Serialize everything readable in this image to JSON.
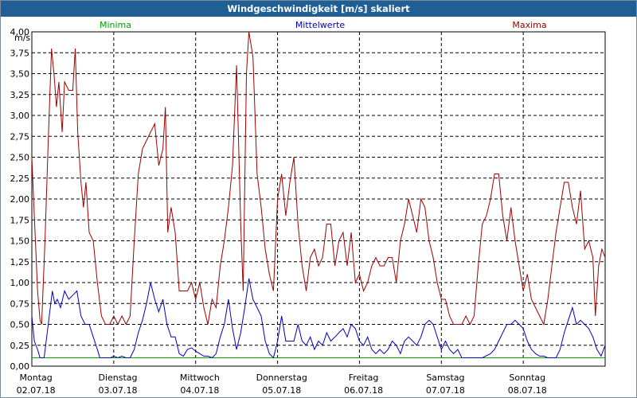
{
  "chart_data": {
    "type": "line",
    "title": "Windgeschwindigkeit [m/s] skaliert",
    "ylabel": "m/s",
    "ylim": [
      0,
      4
    ],
    "y_ticks": [
      "0,00",
      "0,25",
      "0,50",
      "0,75",
      "1,00",
      "1,25",
      "1,50",
      "1,75",
      "2,00",
      "2,25",
      "2,50",
      "2,75",
      "3,00",
      "3,25",
      "3,50",
      "3,75",
      "4,00"
    ],
    "grid": true,
    "days": [
      {
        "weekday": "Montag",
        "date": "02.07.18"
      },
      {
        "weekday": "Dienstag",
        "date": "03.07.18"
      },
      {
        "weekday": "Mittwoch",
        "date": "04.07.18"
      },
      {
        "weekday": "Donnerstag",
        "date": "05.07.18"
      },
      {
        "weekday": "Freitag",
        "date": "06.07.18"
      },
      {
        "weekday": "Samstag",
        "date": "07.07.18"
      },
      {
        "weekday": "Sonntag",
        "date": "08.07.18"
      }
    ],
    "x_range_days": [
      0,
      7
    ],
    "series": [
      {
        "name": "Minima",
        "color": "#00a000",
        "points": [
          [
            0,
            0.1
          ],
          [
            7,
            0.1
          ]
        ]
      },
      {
        "name": "Mittelwerte",
        "color": "#0000c0",
        "points": [
          [
            0,
            0.6
          ],
          [
            0.03,
            0.3
          ],
          [
            0.07,
            0.2
          ],
          [
            0.1,
            0.1
          ],
          [
            0.15,
            0.1
          ],
          [
            0.2,
            0.5
          ],
          [
            0.25,
            0.9
          ],
          [
            0.28,
            0.75
          ],
          [
            0.31,
            0.8
          ],
          [
            0.35,
            0.7
          ],
          [
            0.4,
            0.9
          ],
          [
            0.45,
            0.8
          ],
          [
            0.5,
            0.85
          ],
          [
            0.55,
            0.9
          ],
          [
            0.6,
            0.6
          ],
          [
            0.65,
            0.5
          ],
          [
            0.7,
            0.5
          ],
          [
            0.75,
            0.35
          ],
          [
            0.8,
            0.2
          ],
          [
            0.83,
            0.1
          ],
          [
            0.9,
            0.1
          ],
          [
            0.96,
            0.1
          ],
          [
            1.0,
            0.12
          ],
          [
            1.05,
            0.1
          ],
          [
            1.1,
            0.12
          ],
          [
            1.15,
            0.1
          ],
          [
            1.2,
            0.1
          ],
          [
            1.25,
            0.2
          ],
          [
            1.3,
            0.4
          ],
          [
            1.35,
            0.55
          ],
          [
            1.4,
            0.75
          ],
          [
            1.45,
            1.0
          ],
          [
            1.5,
            0.8
          ],
          [
            1.55,
            0.65
          ],
          [
            1.6,
            0.8
          ],
          [
            1.65,
            0.5
          ],
          [
            1.7,
            0.35
          ],
          [
            1.75,
            0.35
          ],
          [
            1.8,
            0.15
          ],
          [
            1.85,
            0.12
          ],
          [
            1.9,
            0.2
          ],
          [
            1.95,
            0.22
          ],
          [
            2.0,
            0.18
          ],
          [
            2.05,
            0.15
          ],
          [
            2.1,
            0.12
          ],
          [
            2.15,
            0.12
          ],
          [
            2.2,
            0.1
          ],
          [
            2.25,
            0.15
          ],
          [
            2.3,
            0.35
          ],
          [
            2.35,
            0.5
          ],
          [
            2.4,
            0.8
          ],
          [
            2.45,
            0.45
          ],
          [
            2.5,
            0.2
          ],
          [
            2.55,
            0.4
          ],
          [
            2.6,
            0.7
          ],
          [
            2.65,
            1.05
          ],
          [
            2.7,
            0.8
          ],
          [
            2.75,
            0.7
          ],
          [
            2.8,
            0.6
          ],
          [
            2.85,
            0.3
          ],
          [
            2.9,
            0.15
          ],
          [
            2.95,
            0.1
          ],
          [
            3.0,
            0.3
          ],
          [
            3.05,
            0.6
          ],
          [
            3.1,
            0.3
          ],
          [
            3.15,
            0.3
          ],
          [
            3.2,
            0.3
          ],
          [
            3.25,
            0.5
          ],
          [
            3.3,
            0.3
          ],
          [
            3.35,
            0.25
          ],
          [
            3.4,
            0.35
          ],
          [
            3.45,
            0.2
          ],
          [
            3.5,
            0.3
          ],
          [
            3.55,
            0.25
          ],
          [
            3.6,
            0.4
          ],
          [
            3.65,
            0.3
          ],
          [
            3.7,
            0.35
          ],
          [
            3.75,
            0.4
          ],
          [
            3.8,
            0.45
          ],
          [
            3.85,
            0.35
          ],
          [
            3.9,
            0.5
          ],
          [
            3.95,
            0.45
          ],
          [
            4.0,
            0.3
          ],
          [
            4.05,
            0.25
          ],
          [
            4.1,
            0.35
          ],
          [
            4.15,
            0.2
          ],
          [
            4.2,
            0.15
          ],
          [
            4.25,
            0.2
          ],
          [
            4.3,
            0.15
          ],
          [
            4.35,
            0.2
          ],
          [
            4.4,
            0.3
          ],
          [
            4.45,
            0.25
          ],
          [
            4.5,
            0.15
          ],
          [
            4.55,
            0.3
          ],
          [
            4.6,
            0.35
          ],
          [
            4.65,
            0.3
          ],
          [
            4.7,
            0.25
          ],
          [
            4.75,
            0.35
          ],
          [
            4.8,
            0.5
          ],
          [
            4.85,
            0.55
          ],
          [
            4.9,
            0.5
          ],
          [
            4.95,
            0.35
          ],
          [
            5.0,
            0.2
          ],
          [
            5.05,
            0.3
          ],
          [
            5.1,
            0.2
          ],
          [
            5.15,
            0.15
          ],
          [
            5.2,
            0.2
          ],
          [
            5.25,
            0.1
          ],
          [
            5.3,
            0.1
          ],
          [
            5.35,
            0.1
          ],
          [
            5.4,
            0.1
          ],
          [
            5.5,
            0.1
          ],
          [
            5.6,
            0.15
          ],
          [
            5.65,
            0.2
          ],
          [
            5.7,
            0.3
          ],
          [
            5.75,
            0.4
          ],
          [
            5.8,
            0.5
          ],
          [
            5.85,
            0.5
          ],
          [
            5.9,
            0.55
          ],
          [
            5.95,
            0.5
          ],
          [
            6.0,
            0.45
          ],
          [
            6.05,
            0.3
          ],
          [
            6.1,
            0.2
          ],
          [
            6.15,
            0.15
          ],
          [
            6.2,
            0.12
          ],
          [
            6.25,
            0.12
          ],
          [
            6.3,
            0.1
          ],
          [
            6.35,
            0.1
          ],
          [
            6.4,
            0.1
          ],
          [
            6.45,
            0.2
          ],
          [
            6.5,
            0.4
          ],
          [
            6.55,
            0.55
          ],
          [
            6.6,
            0.7
          ],
          [
            6.65,
            0.5
          ],
          [
            6.7,
            0.55
          ],
          [
            6.75,
            0.5
          ],
          [
            6.8,
            0.45
          ],
          [
            6.85,
            0.35
          ],
          [
            6.9,
            0.2
          ],
          [
            6.95,
            0.12
          ],
          [
            7.0,
            0.25
          ]
        ]
      },
      {
        "name": "Maxima",
        "color": "#a00000",
        "points": [
          [
            0,
            2.5
          ],
          [
            0.03,
            1.8
          ],
          [
            0.07,
            0.9
          ],
          [
            0.1,
            0.55
          ],
          [
            0.12,
            0.5
          ],
          [
            0.16,
            1.5
          ],
          [
            0.2,
            2.7
          ],
          [
            0.24,
            3.8
          ],
          [
            0.27,
            3.5
          ],
          [
            0.3,
            3.1
          ],
          [
            0.33,
            3.4
          ],
          [
            0.37,
            2.8
          ],
          [
            0.4,
            3.4
          ],
          [
            0.45,
            3.3
          ],
          [
            0.5,
            3.3
          ],
          [
            0.53,
            3.8
          ],
          [
            0.56,
            2.8
          ],
          [
            0.6,
            2.2
          ],
          [
            0.63,
            1.9
          ],
          [
            0.66,
            2.2
          ],
          [
            0.7,
            1.6
          ],
          [
            0.75,
            1.5
          ],
          [
            0.8,
            1.0
          ],
          [
            0.85,
            0.6
          ],
          [
            0.9,
            0.5
          ],
          [
            0.95,
            0.5
          ],
          [
            1.0,
            0.6
          ],
          [
            1.05,
            0.5
          ],
          [
            1.1,
            0.6
          ],
          [
            1.15,
            0.5
          ],
          [
            1.2,
            0.6
          ],
          [
            1.25,
            1.5
          ],
          [
            1.3,
            2.3
          ],
          [
            1.35,
            2.6
          ],
          [
            1.4,
            2.7
          ],
          [
            1.45,
            2.8
          ],
          [
            1.5,
            2.9
          ],
          [
            1.55,
            2.4
          ],
          [
            1.6,
            2.6
          ],
          [
            1.63,
            3.1
          ],
          [
            1.66,
            1.6
          ],
          [
            1.7,
            1.9
          ],
          [
            1.75,
            1.6
          ],
          [
            1.8,
            0.9
          ],
          [
            1.85,
            0.9
          ],
          [
            1.9,
            0.9
          ],
          [
            1.95,
            1.0
          ],
          [
            2.0,
            0.8
          ],
          [
            2.05,
            1.0
          ],
          [
            2.1,
            0.7
          ],
          [
            2.15,
            0.5
          ],
          [
            2.2,
            0.8
          ],
          [
            2.25,
            0.7
          ],
          [
            2.3,
            1.2
          ],
          [
            2.35,
            1.5
          ],
          [
            2.4,
            1.9
          ],
          [
            2.45,
            2.4
          ],
          [
            2.5,
            3.6
          ],
          [
            2.55,
            1.7
          ],
          [
            2.58,
            0.9
          ],
          [
            2.62,
            3.5
          ],
          [
            2.65,
            4.0
          ],
          [
            2.7,
            3.7
          ],
          [
            2.75,
            2.3
          ],
          [
            2.8,
            1.9
          ],
          [
            2.85,
            1.4
          ],
          [
            2.9,
            1.1
          ],
          [
            2.95,
            0.9
          ],
          [
            3.0,
            2.0
          ],
          [
            3.05,
            2.3
          ],
          [
            3.1,
            1.8
          ],
          [
            3.15,
            2.2
          ],
          [
            3.2,
            2.5
          ],
          [
            3.25,
            1.7
          ],
          [
            3.3,
            1.2
          ],
          [
            3.35,
            0.9
          ],
          [
            3.4,
            1.3
          ],
          [
            3.45,
            1.4
          ],
          [
            3.5,
            1.2
          ],
          [
            3.55,
            1.3
          ],
          [
            3.6,
            1.7
          ],
          [
            3.65,
            1.7
          ],
          [
            3.7,
            1.2
          ],
          [
            3.75,
            1.5
          ],
          [
            3.8,
            1.6
          ],
          [
            3.85,
            1.2
          ],
          [
            3.9,
            1.6
          ],
          [
            3.95,
            1.0
          ],
          [
            4.0,
            1.1
          ],
          [
            4.05,
            0.9
          ],
          [
            4.1,
            1.0
          ],
          [
            4.15,
            1.2
          ],
          [
            4.2,
            1.3
          ],
          [
            4.25,
            1.2
          ],
          [
            4.3,
            1.2
          ],
          [
            4.35,
            1.3
          ],
          [
            4.4,
            1.3
          ],
          [
            4.45,
            1.0
          ],
          [
            4.5,
            1.5
          ],
          [
            4.55,
            1.7
          ],
          [
            4.6,
            2.0
          ],
          [
            4.65,
            1.8
          ],
          [
            4.7,
            1.6
          ],
          [
            4.75,
            2.0
          ],
          [
            4.8,
            1.9
          ],
          [
            4.85,
            1.5
          ],
          [
            4.9,
            1.3
          ],
          [
            4.95,
            1.0
          ],
          [
            5.0,
            0.8
          ],
          [
            5.05,
            0.8
          ],
          [
            5.1,
            0.6
          ],
          [
            5.15,
            0.5
          ],
          [
            5.2,
            0.5
          ],
          [
            5.25,
            0.5
          ],
          [
            5.3,
            0.6
          ],
          [
            5.35,
            0.5
          ],
          [
            5.4,
            0.6
          ],
          [
            5.45,
            1.2
          ],
          [
            5.5,
            1.7
          ],
          [
            5.55,
            1.8
          ],
          [
            5.6,
            2.0
          ],
          [
            5.65,
            2.3
          ],
          [
            5.7,
            2.3
          ],
          [
            5.75,
            1.8
          ],
          [
            5.8,
            1.5
          ],
          [
            5.85,
            1.9
          ],
          [
            5.9,
            1.5
          ],
          [
            5.95,
            1.2
          ],
          [
            6.0,
            0.9
          ],
          [
            6.05,
            1.1
          ],
          [
            6.1,
            0.8
          ],
          [
            6.15,
            0.7
          ],
          [
            6.2,
            0.6
          ],
          [
            6.25,
            0.5
          ],
          [
            6.3,
            0.8
          ],
          [
            6.35,
            1.2
          ],
          [
            6.4,
            1.6
          ],
          [
            6.45,
            1.9
          ],
          [
            6.5,
            2.2
          ],
          [
            6.55,
            2.2
          ],
          [
            6.6,
            1.9
          ],
          [
            6.65,
            1.7
          ],
          [
            6.7,
            2.1
          ],
          [
            6.75,
            1.4
          ],
          [
            6.8,
            1.5
          ],
          [
            6.85,
            1.3
          ],
          [
            6.88,
            0.6
          ],
          [
            6.92,
            1.2
          ],
          [
            6.96,
            1.4
          ],
          [
            7.0,
            1.3
          ]
        ]
      }
    ]
  }
}
